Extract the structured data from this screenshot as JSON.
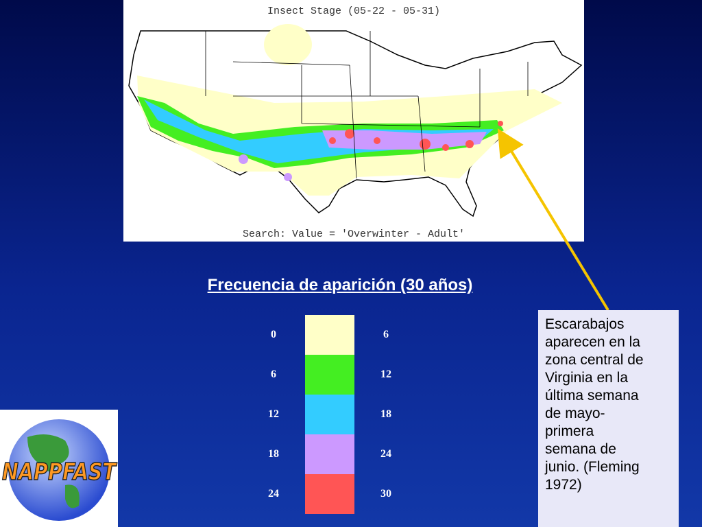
{
  "map": {
    "title": "Insect Stage (05-22 - 05-31)",
    "footer": "Search: Value = 'Overwinter - Adult'"
  },
  "legend": {
    "title": "Frecuencia de aparición (30 años)",
    "rows": [
      {
        "from": 0,
        "to": 6,
        "color": "#ffffc8"
      },
      {
        "from": 6,
        "to": 12,
        "color": "#44ee22"
      },
      {
        "from": 12,
        "to": 18,
        "color": "#33ccff"
      },
      {
        "from": 18,
        "to": 24,
        "color": "#cc99ff"
      },
      {
        "from": 24,
        "to": 30,
        "color": "#ff5555"
      }
    ]
  },
  "note": {
    "lines": [
      "Escarabajos",
      "aparecen en la",
      "zona central de",
      "Virginia en la",
      "última semana",
      "de mayo-",
      "primera",
      "semana de",
      "junio. (Fleming",
      "1972)"
    ]
  },
  "logo": {
    "text": "NAPPFAST"
  }
}
